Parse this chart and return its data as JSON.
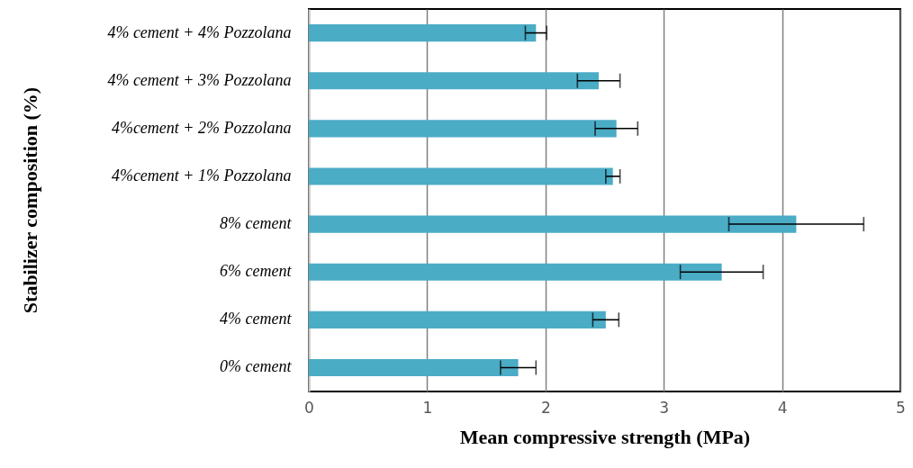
{
  "chart_data": {
    "type": "bar",
    "orientation": "horizontal",
    "xlabel": "Mean compressive strength (MPa)",
    "ylabel": "Stabilizer composition (%)",
    "categories": [
      "4% cement + 4% Pozzolana",
      "4% cement + 3% Pozzolana",
      "4%cement + 2% Pozzolana",
      "4%cement + 1% Pozzolana",
      "8% cement",
      "6% cement",
      "4% cement",
      "0% cement"
    ],
    "values": [
      1.92,
      2.45,
      2.6,
      2.57,
      4.12,
      3.49,
      2.51,
      1.77
    ],
    "errors": [
      0.09,
      0.18,
      0.18,
      0.06,
      0.57,
      0.35,
      0.11,
      0.15
    ],
    "color": "#4bacc6",
    "xlim": [
      0,
      5
    ],
    "xticks": [
      0,
      1,
      2,
      3,
      4,
      5
    ],
    "grid": "x"
  }
}
